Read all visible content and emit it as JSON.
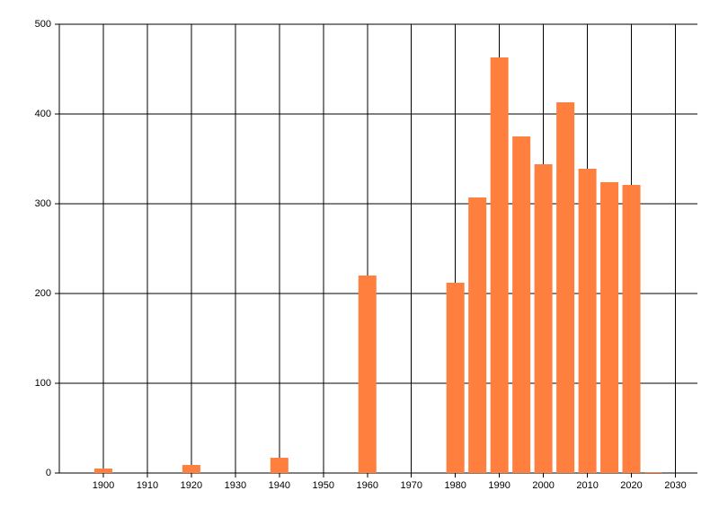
{
  "chart_data": {
    "type": "bar",
    "x": [
      1900,
      1920,
      1940,
      1960,
      1980,
      1985,
      1990,
      1995,
      2000,
      2005,
      2010,
      2015,
      2020,
      2025
    ],
    "values": [
      5,
      9,
      17,
      220,
      212,
      307,
      463,
      375,
      344,
      413,
      339,
      324,
      321,
      1
    ],
    "color": "#ff7f3f",
    "xlim": [
      1890,
      2035
    ],
    "xticks": [
      1900,
      1910,
      1920,
      1930,
      1940,
      1950,
      1960,
      1970,
      1980,
      1990,
      2000,
      2010,
      2020,
      2030
    ],
    "ylim": [
      0,
      500
    ],
    "yticks": [
      0,
      100,
      200,
      300,
      400,
      500
    ],
    "grid": true
  }
}
